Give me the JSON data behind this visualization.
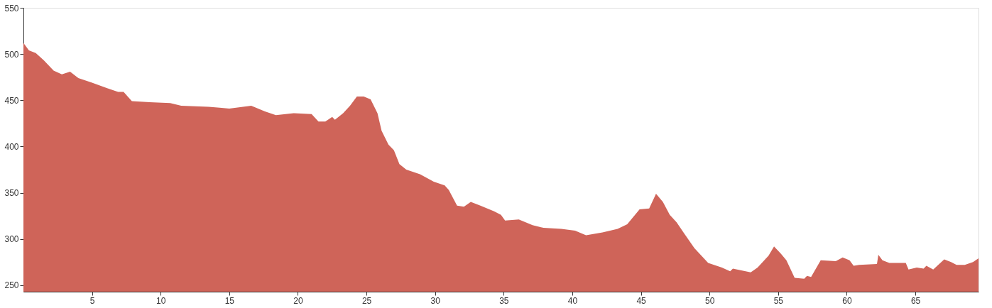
{
  "chart_data": {
    "type": "area",
    "x": [
      0,
      0.4,
      0.9,
      1.5,
      2.2,
      2.8,
      3.4,
      4.0,
      5.0,
      6.1,
      6.9,
      7.3,
      7.9,
      9.2,
      10.7,
      11.5,
      13.5,
      14.3,
      15.0,
      16.6,
      17.6,
      18.4,
      19.7,
      21.0,
      21.5,
      22.0,
      22.5,
      22.7,
      23.3,
      23.8,
      24.3,
      24.8,
      25.3,
      25.8,
      26.1,
      26.6,
      27.0,
      27.4,
      27.9,
      28.9,
      29.9,
      30.7,
      31.0,
      31.6,
      32.1,
      32.6,
      33.3,
      34.3,
      34.8,
      35.1,
      36.1,
      37.1,
      37.9,
      39.2,
      40.2,
      41.0,
      42.2,
      43.3,
      44.0,
      44.9,
      45.6,
      46.1,
      46.6,
      47.1,
      47.6,
      48.1,
      48.9,
      49.9,
      50.9,
      51.5,
      51.7,
      53.0,
      53.5,
      54.3,
      54.7,
      55.2,
      55.6,
      56.2,
      56.9,
      57.1,
      57.4,
      58.1,
      59.2,
      59.7,
      60.2,
      60.5,
      60.9,
      62.2,
      62.3,
      62.6,
      63.1,
      64.3,
      64.5,
      65.1,
      65.6,
      65.8,
      66.3,
      67.1,
      67.6,
      68.0,
      68.6,
      69.2,
      69.6
    ],
    "series": [
      {
        "color": "#cf6459",
        "values": [
          512,
          504,
          501,
          493,
          482,
          478,
          481,
          474,
          469,
          463,
          459,
          459,
          449,
          448,
          447,
          444,
          443,
          442,
          441,
          444,
          438,
          434,
          436,
          435,
          427,
          427,
          432,
          429,
          436,
          444,
          454,
          454,
          451,
          436,
          417,
          402,
          396,
          381,
          375,
          370,
          362,
          358,
          353,
          336,
          335,
          340,
          336,
          330,
          326,
          320,
          321,
          315,
          312,
          311,
          309,
          304,
          307,
          311,
          316,
          332,
          333,
          349,
          340,
          326,
          318,
          307,
          290,
          274,
          269,
          265,
          268,
          264,
          269,
          282,
          292,
          284,
          277,
          258,
          257,
          260,
          259,
          277,
          276,
          280,
          277,
          271,
          272,
          273,
          283,
          277,
          274,
          274,
          267,
          269,
          268,
          271,
          267,
          278,
          275,
          272,
          272,
          275,
          279
        ]
      }
    ],
    "xlim": [
      0,
      69.6
    ],
    "xticks": [
      5,
      10,
      15,
      20,
      25,
      30,
      35,
      40,
      45,
      50,
      55,
      60,
      65
    ],
    "ylim": [
      243,
      550
    ],
    "yticks": [
      250,
      300,
      350,
      400,
      450,
      500,
      550
    ],
    "grid": false,
    "legend": false
  }
}
